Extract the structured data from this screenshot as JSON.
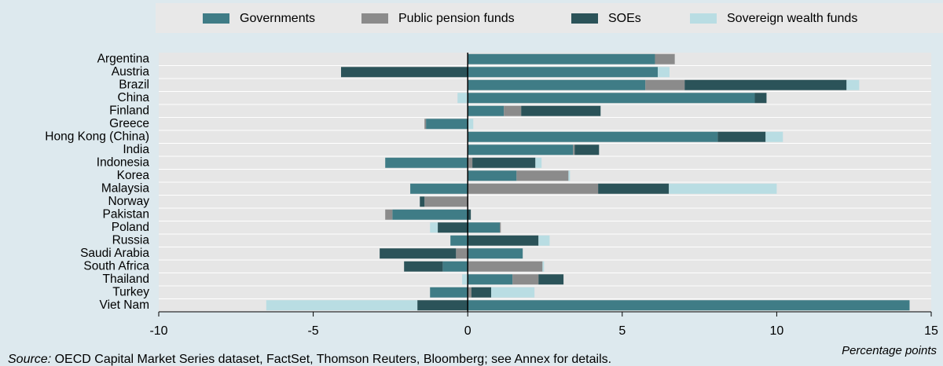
{
  "chart_data": {
    "type": "stacked_barh",
    "categories": [
      "Argentina",
      "Austria",
      "Brazil",
      "China",
      "Finland",
      "Greece",
      "Hong Kong (China)",
      "India",
      "Indonesia",
      "Korea",
      "Malaysia",
      "Norway",
      "Pakistan",
      "Poland",
      "Russia",
      "Saudi Arabia",
      "South Africa",
      "Thailand",
      "Turkey",
      "Viet Nam"
    ],
    "series": [
      {
        "name": "Governments",
        "color": "#3f7c86",
        "values": [
          6.06,
          6.15,
          5.75,
          9.29,
          1.17,
          -1.35,
          8.09,
          3.41,
          -2.67,
          1.58,
          -1.86,
          0,
          -2.44,
          1.04,
          -0.56,
          1.78,
          -0.81,
          1.45,
          -1.22,
          14.3
        ]
      },
      {
        "name": "Public pension funds",
        "color": "#8b8b8b",
        "values": [
          0.64,
          0,
          1.27,
          0,
          0.56,
          -0.05,
          0,
          0.05,
          0.15,
          1.68,
          4.22,
          -1.4,
          -0.23,
          0.03,
          0,
          -0.38,
          2.42,
          0.84,
          0.12,
          0
        ]
      },
      {
        "name": "SOEs",
        "color": "#2b5359",
        "values": [
          0,
          -4.1,
          5.24,
          0.38,
          2.57,
          0,
          1.55,
          0.79,
          2.04,
          0,
          2.29,
          -0.15,
          0.1,
          -0.97,
          2.29,
          -2.47,
          -1.25,
          0.81,
          0.64,
          -1.63
        ]
      },
      {
        "name": "Sovereign wealth funds",
        "color": "#b9dde3",
        "values": [
          0,
          0.38,
          0.41,
          -0.33,
          0,
          0.18,
          0.56,
          0,
          0.2,
          0.05,
          3.49,
          0,
          0,
          -0.25,
          0.36,
          0,
          0.05,
          -0.18,
          1.4,
          -4.89
        ]
      }
    ],
    "xlim": [
      -10,
      15
    ],
    "xticks": [
      -10,
      -5,
      0,
      5,
      10,
      15
    ],
    "xlabel": "Percentage points",
    "source_label": "Source:",
    "source": "OECD Capital Market Series dataset, FactSet, Thomson Reuters, Bloomberg; see Annex for details."
  }
}
